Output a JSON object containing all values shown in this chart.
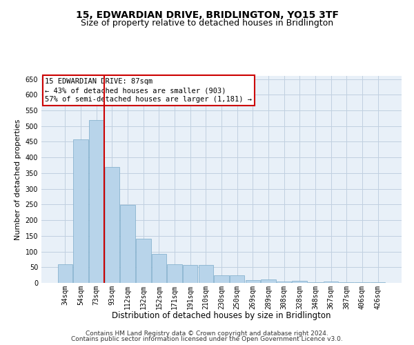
{
  "title": "15, EDWARDIAN DRIVE, BRIDLINGTON, YO15 3TF",
  "subtitle": "Size of property relative to detached houses in Bridlington",
  "xlabel": "Distribution of detached houses by size in Bridlington",
  "ylabel": "Number of detached properties",
  "categories": [
    "34sqm",
    "54sqm",
    "73sqm",
    "93sqm",
    "112sqm",
    "132sqm",
    "152sqm",
    "171sqm",
    "191sqm",
    "210sqm",
    "230sqm",
    "250sqm",
    "269sqm",
    "289sqm",
    "308sqm",
    "328sqm",
    "348sqm",
    "367sqm",
    "387sqm",
    "406sqm",
    "426sqm"
  ],
  "values": [
    60,
    457,
    519,
    369,
    248,
    140,
    93,
    60,
    57,
    57,
    25,
    25,
    8,
    10,
    5,
    7,
    3,
    5,
    3,
    2,
    2
  ],
  "bar_color": "#b8d4ea",
  "bar_edge_color": "#7aaac8",
  "vline_color": "#cc0000",
  "vline_bar_index": 2,
  "annotation_line1": "15 EDWARDIAN DRIVE: 87sqm",
  "annotation_line2": "← 43% of detached houses are smaller (903)",
  "annotation_line3": "57% of semi-detached houses are larger (1,181) →",
  "annotation_box_color": "#cc0000",
  "ylim": [
    0,
    660
  ],
  "yticks": [
    0,
    50,
    100,
    150,
    200,
    250,
    300,
    350,
    400,
    450,
    500,
    550,
    600,
    650
  ],
  "grid_color": "#c0d0e0",
  "background_color": "#e8f0f8",
  "footer_line1": "Contains HM Land Registry data © Crown copyright and database right 2024.",
  "footer_line2": "Contains public sector information licensed under the Open Government Licence v3.0.",
  "title_fontsize": 10,
  "subtitle_fontsize": 9,
  "xlabel_fontsize": 8.5,
  "ylabel_fontsize": 8,
  "tick_fontsize": 7,
  "annotation_fontsize": 7.5,
  "footer_fontsize": 6.5
}
